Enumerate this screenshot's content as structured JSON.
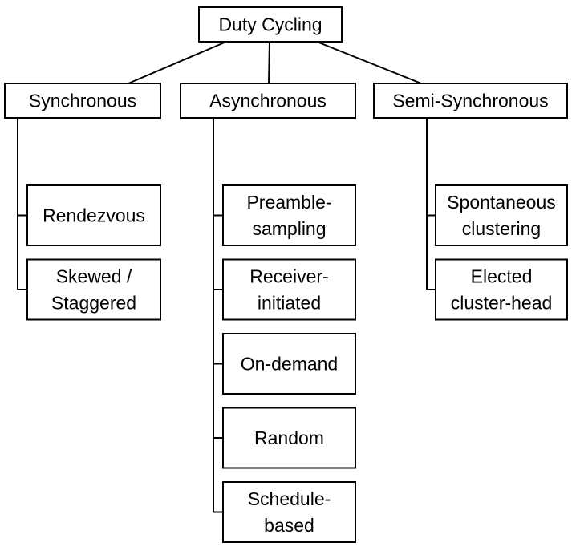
{
  "root": {
    "label": "Duty Cycling"
  },
  "categories": [
    {
      "label": "Synchronous",
      "children": [
        {
          "lines": [
            "Rendezvous"
          ]
        },
        {
          "lines": [
            "Skewed /",
            "Staggered"
          ]
        }
      ]
    },
    {
      "label": "Asynchronous",
      "children": [
        {
          "lines": [
            "Preamble-",
            "sampling"
          ]
        },
        {
          "lines": [
            "Receiver-",
            "initiated"
          ]
        },
        {
          "lines": [
            "On-demand"
          ]
        },
        {
          "lines": [
            "Random"
          ]
        },
        {
          "lines": [
            "Schedule-",
            "based"
          ]
        }
      ]
    },
    {
      "label": "Semi-Synchronous",
      "children": [
        {
          "lines": [
            "Spontaneous",
            "clustering"
          ]
        },
        {
          "lines": [
            "Elected",
            "cluster-head"
          ]
        }
      ]
    }
  ]
}
